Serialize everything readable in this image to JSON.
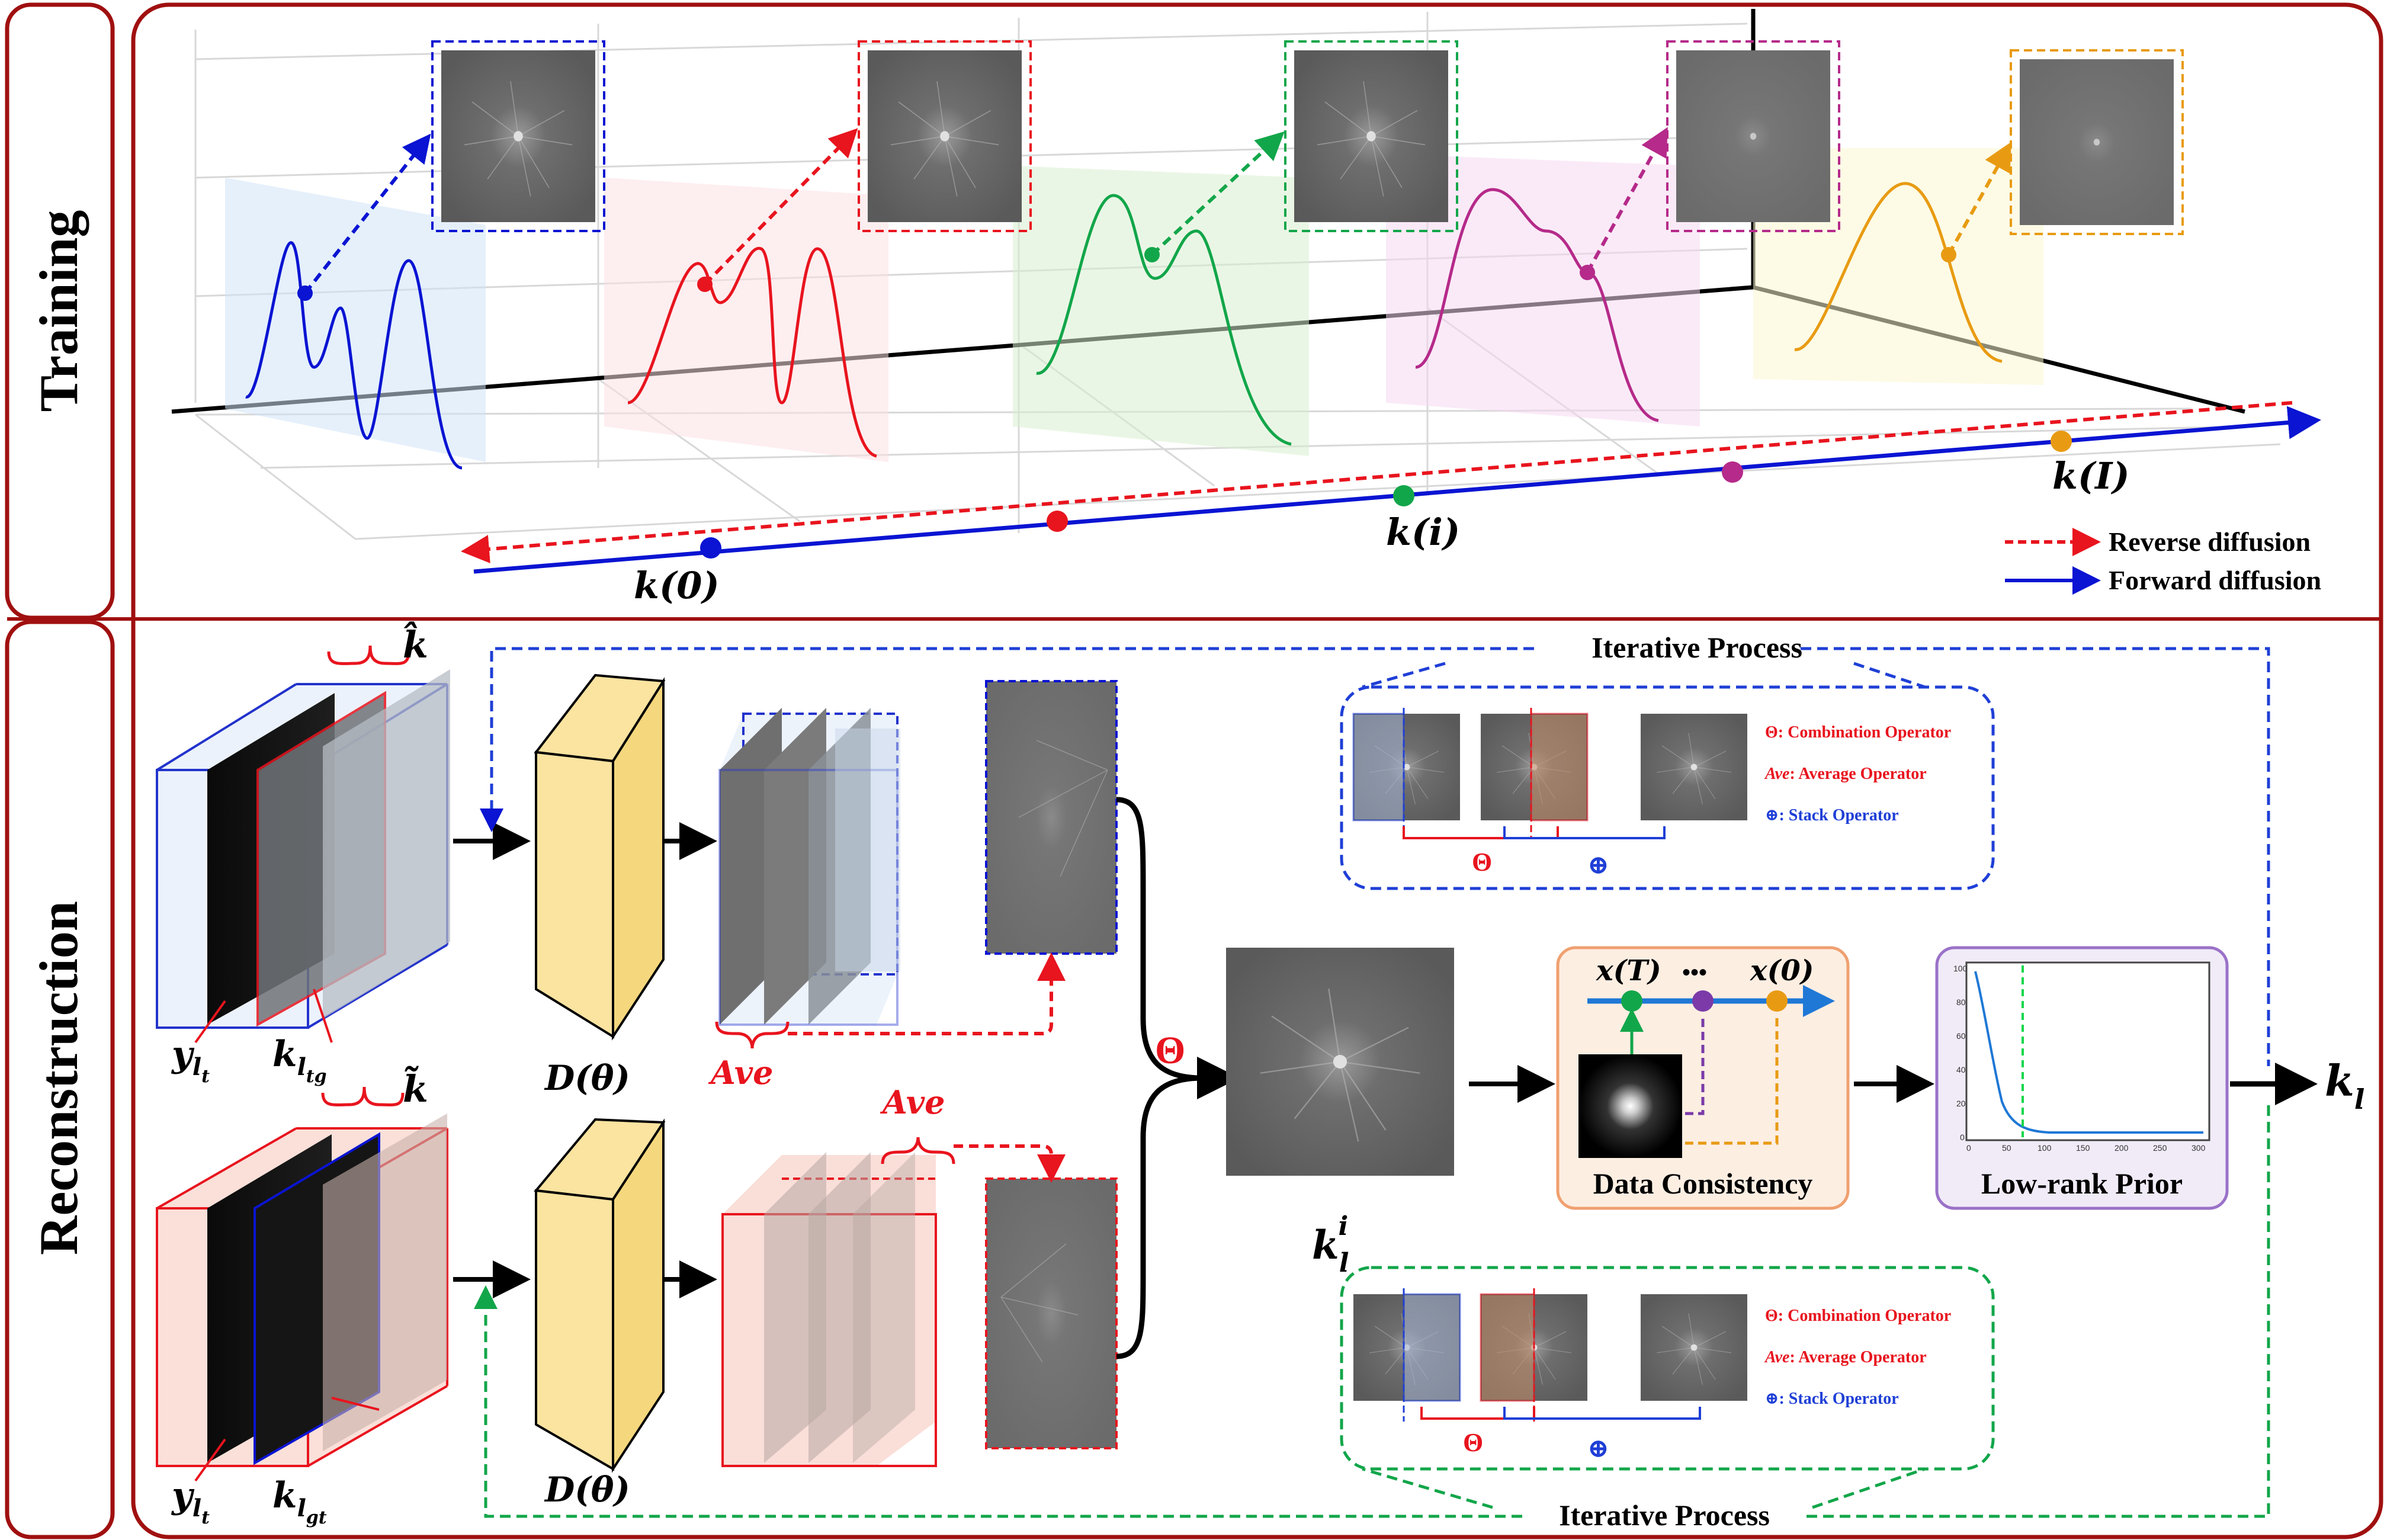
{
  "sections": {
    "training_label": "Training",
    "reconstruction_label": "Reconstruction"
  },
  "training": {
    "legend": {
      "reverse": "Reverse diffusion",
      "forward": "Forward diffusion"
    },
    "points": {
      "k0": "k(0)",
      "ki": "k(i)",
      "kI": "k(I)"
    },
    "colors": {
      "blue": "#0a14d2",
      "red": "#e8141e",
      "green": "#12a64a",
      "magenta": "#b52a8a",
      "orange": "#e89b12"
    }
  },
  "reconstruction": {
    "iterative_process_top": "Iterative Process",
    "iterative_process_bottom": "Iterative Process",
    "operators_top": {
      "combination": "Combination Operator",
      "average": "Average Operator",
      "stack": "Stack Operator",
      "combination_symbol": "Θ",
      "average_symbol": "Ave",
      "stack_symbol": "⊕"
    },
    "operators_bottom": {
      "combination": "Combination Operator",
      "average": "Average Operator",
      "stack": "Stack Operator",
      "combination_symbol": "Θ",
      "average_symbol": "Ave",
      "stack_symbol": "⊕"
    },
    "top_branch": {
      "k_hat": "k̂",
      "y_label": "y",
      "y_sub": "l",
      "y_subsub": "t",
      "k_label": "k",
      "k_sub": "l",
      "k_subsub": "tg",
      "network": "D(θ)",
      "ave": "Ave"
    },
    "bottom_branch": {
      "k_tilde": "k̃",
      "y_label": "y",
      "y_sub": "l",
      "y_subsub": "t",
      "k_label": "k",
      "k_sub": "l",
      "k_subsub": "gt",
      "network": "D(θ)",
      "ave": "Ave"
    },
    "theta": "Θ",
    "kli_main": "k",
    "kli_sub": "l",
    "kli_sup": "i",
    "data_consistency": {
      "title": "Data Consistency",
      "xT": "x(T)",
      "dots": "•••",
      "x0": "x(0)"
    },
    "low_rank": {
      "title": "Low-rank Prior",
      "yticks": [
        "100",
        "80",
        "60",
        "40",
        "20",
        "0"
      ],
      "xticks": [
        "0",
        "50",
        "100",
        "150",
        "200",
        "250",
        "300"
      ]
    },
    "output_main": "k",
    "output_sub": "l"
  }
}
